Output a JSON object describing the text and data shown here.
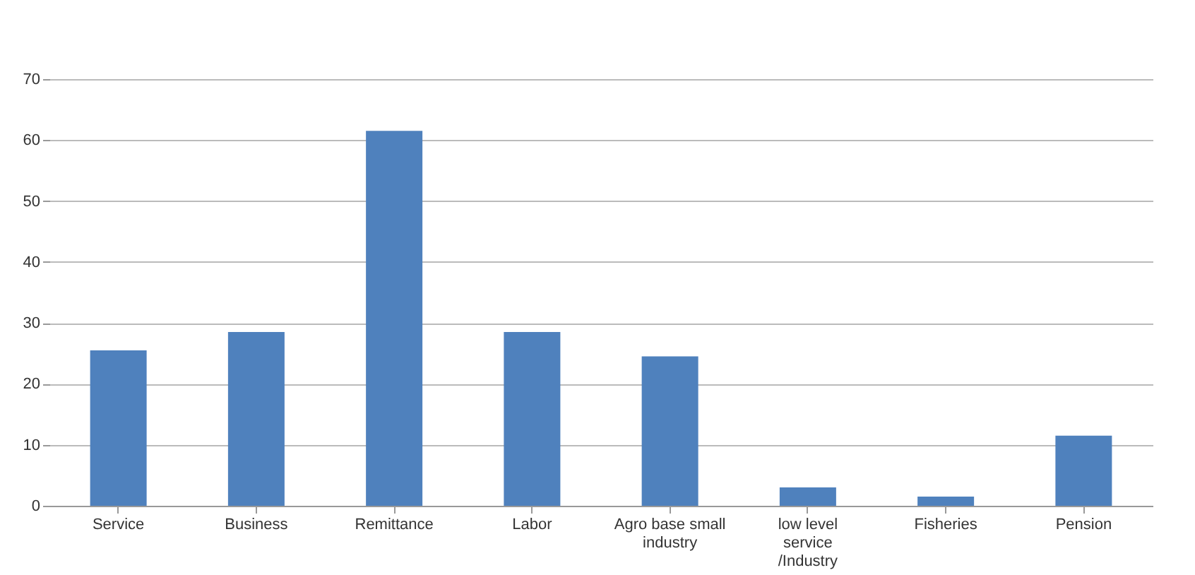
{
  "chart_data": {
    "type": "bar",
    "categories": [
      "Service",
      "Business",
      "Remittance",
      "Labor",
      "Agro base small industry",
      "low level service /Industry",
      "Fisheries",
      "Pension"
    ],
    "values": [
      25.5,
      28.5,
      61.5,
      28.5,
      24.5,
      3,
      1.5,
      11.5
    ],
    "color": "#4f81bd",
    "ylim": [
      0,
      70
    ],
    "yticks": [
      0,
      10,
      20,
      30,
      40,
      50,
      60,
      70
    ],
    "grid": "y"
  }
}
